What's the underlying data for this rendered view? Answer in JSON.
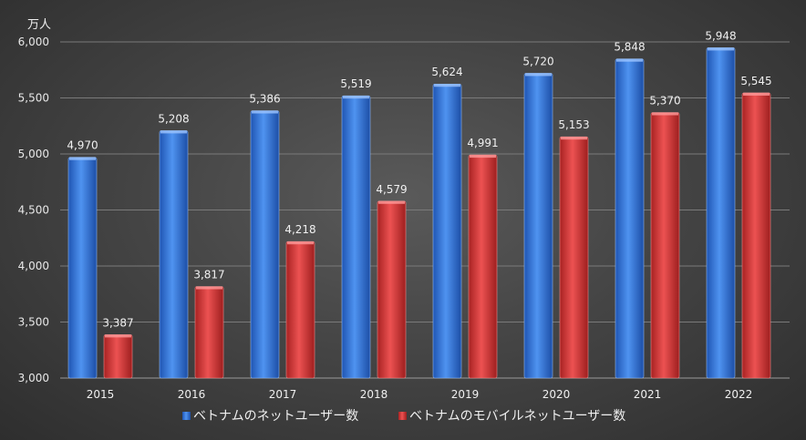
{
  "chart_data": {
    "type": "bar",
    "title": "",
    "unit_label": "万人",
    "xlabel": "",
    "ylabel": "",
    "ylim": [
      3000,
      6000
    ],
    "yticks": [
      3000,
      3500,
      4000,
      4500,
      5000,
      5500,
      6000
    ],
    "ytick_labels": [
      "3,000",
      "3,500",
      "4,000",
      "4,500",
      "5,000",
      "5,500",
      "6,000"
    ],
    "grid": true,
    "legend_position": "bottom",
    "categories": [
      "2015",
      "2016",
      "2017",
      "2018",
      "2019",
      "2020",
      "2021",
      "2022"
    ],
    "series": [
      {
        "name": "ベトナムのネットユーザー数",
        "color": "#3a7be0",
        "values": [
          4970,
          5208,
          5386,
          5519,
          5624,
          5720,
          5848,
          5948
        ],
        "labels": [
          "4,970",
          "5,208",
          "5,386",
          "5,519",
          "5,624",
          "5,720",
          "5,848",
          "5,948"
        ]
      },
      {
        "name": "ベトナムのモバイルネットユーザー数",
        "color": "#d93a3a",
        "values": [
          3387,
          3817,
          4218,
          4579,
          4991,
          5153,
          5370,
          5545
        ],
        "labels": [
          "3,387",
          "3,817",
          "4,218",
          "4,579",
          "4,991",
          "5,153",
          "5,370",
          "5,545"
        ]
      }
    ]
  }
}
